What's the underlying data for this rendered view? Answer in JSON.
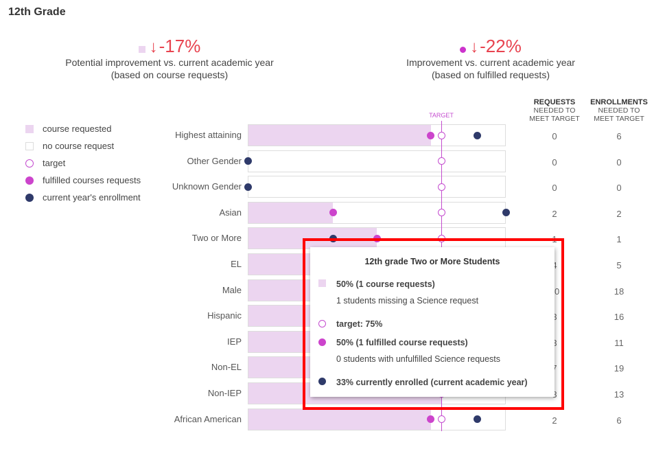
{
  "title": "12th Grade",
  "colors": {
    "requested": "#ecd5f0",
    "fulfilled": "#cc44cc",
    "enrolled": "#2f3a6a",
    "target": "#c44ccf",
    "negative": "#e8434f",
    "highlight": "#ff0000"
  },
  "kpis": [
    {
      "icon": "square-icon",
      "arrow": "↓",
      "value": "-17%",
      "line1": "Potential improvement vs. current academic year",
      "line2": "(based on course requests)"
    },
    {
      "icon": "dot-icon",
      "arrow": "↓",
      "value": "-22%",
      "line1": "Improvement vs. current academic year",
      "line2": "(based on fulfilled requests)"
    }
  ],
  "legend": [
    {
      "label": "course requested",
      "icon": "filled-square"
    },
    {
      "label": "no course request",
      "icon": "empty-square"
    },
    {
      "label": "target",
      "icon": "open-circle"
    },
    {
      "label": "fulfilled courses requests",
      "icon": "magenta-dot"
    },
    {
      "label": "current year's enrollment",
      "icon": "navy-dot"
    }
  ],
  "columns": {
    "requests": {
      "title": "REQUESTS",
      "sub1": "NEEDED TO",
      "sub2": "MEET TARGET"
    },
    "enrollments": {
      "title": "ENROLLMENTS",
      "sub1": "NEEDED TO",
      "sub2": "MEET TARGET"
    }
  },
  "chart_data": {
    "type": "bar",
    "target_label": "TARGET",
    "target_pct": 75,
    "xlim": [
      0,
      100
    ],
    "rows": [
      {
        "label": "Highest attaining",
        "requested_pct": 71,
        "fulfilled_pct": 71,
        "enrolled_pct": 89,
        "requests": "0",
        "enrollments": "6"
      },
      {
        "label": "Other Gender",
        "requested_pct": 0,
        "fulfilled_pct": null,
        "enrolled_pct": 0,
        "requests": "0",
        "enrollments": "0"
      },
      {
        "label": "Unknown Gender",
        "requested_pct": 0,
        "fulfilled_pct": null,
        "enrolled_pct": 0,
        "requests": "0",
        "enrollments": "0"
      },
      {
        "label": "Asian",
        "requested_pct": 33,
        "fulfilled_pct": 33,
        "enrolled_pct": 100,
        "requests": "2",
        "enrollments": "2"
      },
      {
        "label": "Two or More",
        "requested_pct": 50,
        "fulfilled_pct": 50,
        "enrolled_pct": 33,
        "requests": "1",
        "enrollments": "1"
      },
      {
        "label": "EL",
        "requested_pct": null,
        "fulfilled_pct": null,
        "enrolled_pct": null,
        "requests": "4",
        "enrollments": "5"
      },
      {
        "label": "Male",
        "requested_pct": null,
        "fulfilled_pct": null,
        "enrolled_pct": null,
        "requests": "10",
        "enrollments": "18"
      },
      {
        "label": "Hispanic",
        "requested_pct": null,
        "fulfilled_pct": null,
        "enrolled_pct": null,
        "requests": "3",
        "enrollments": "16"
      },
      {
        "label": "IEP",
        "requested_pct": null,
        "fulfilled_pct": null,
        "enrolled_pct": null,
        "requests": "3",
        "enrollments": "11"
      },
      {
        "label": "Non-EL",
        "requested_pct": null,
        "fulfilled_pct": null,
        "enrolled_pct": null,
        "requests": "7",
        "enrollments": "19"
      },
      {
        "label": "Non-IEP",
        "requested_pct": null,
        "fulfilled_pct": null,
        "enrolled_pct": null,
        "requests": "3",
        "enrollments": "13"
      },
      {
        "label": "African American",
        "requested_pct": 71,
        "fulfilled_pct": 71,
        "enrolled_pct": 89,
        "requests": "2",
        "enrollments": "6"
      }
    ]
  },
  "tooltip": {
    "title": "12th grade Two or More Students",
    "requested": "50% (1 course requests)",
    "requested_sub": "1 students missing a Science request",
    "target": "target: 75%",
    "fulfilled": "50% (1 fulfilled course requests)",
    "fulfilled_sub": "0 students with unfulfilled Science requests",
    "enrolled": "33% currently enrolled (current academic year)"
  }
}
